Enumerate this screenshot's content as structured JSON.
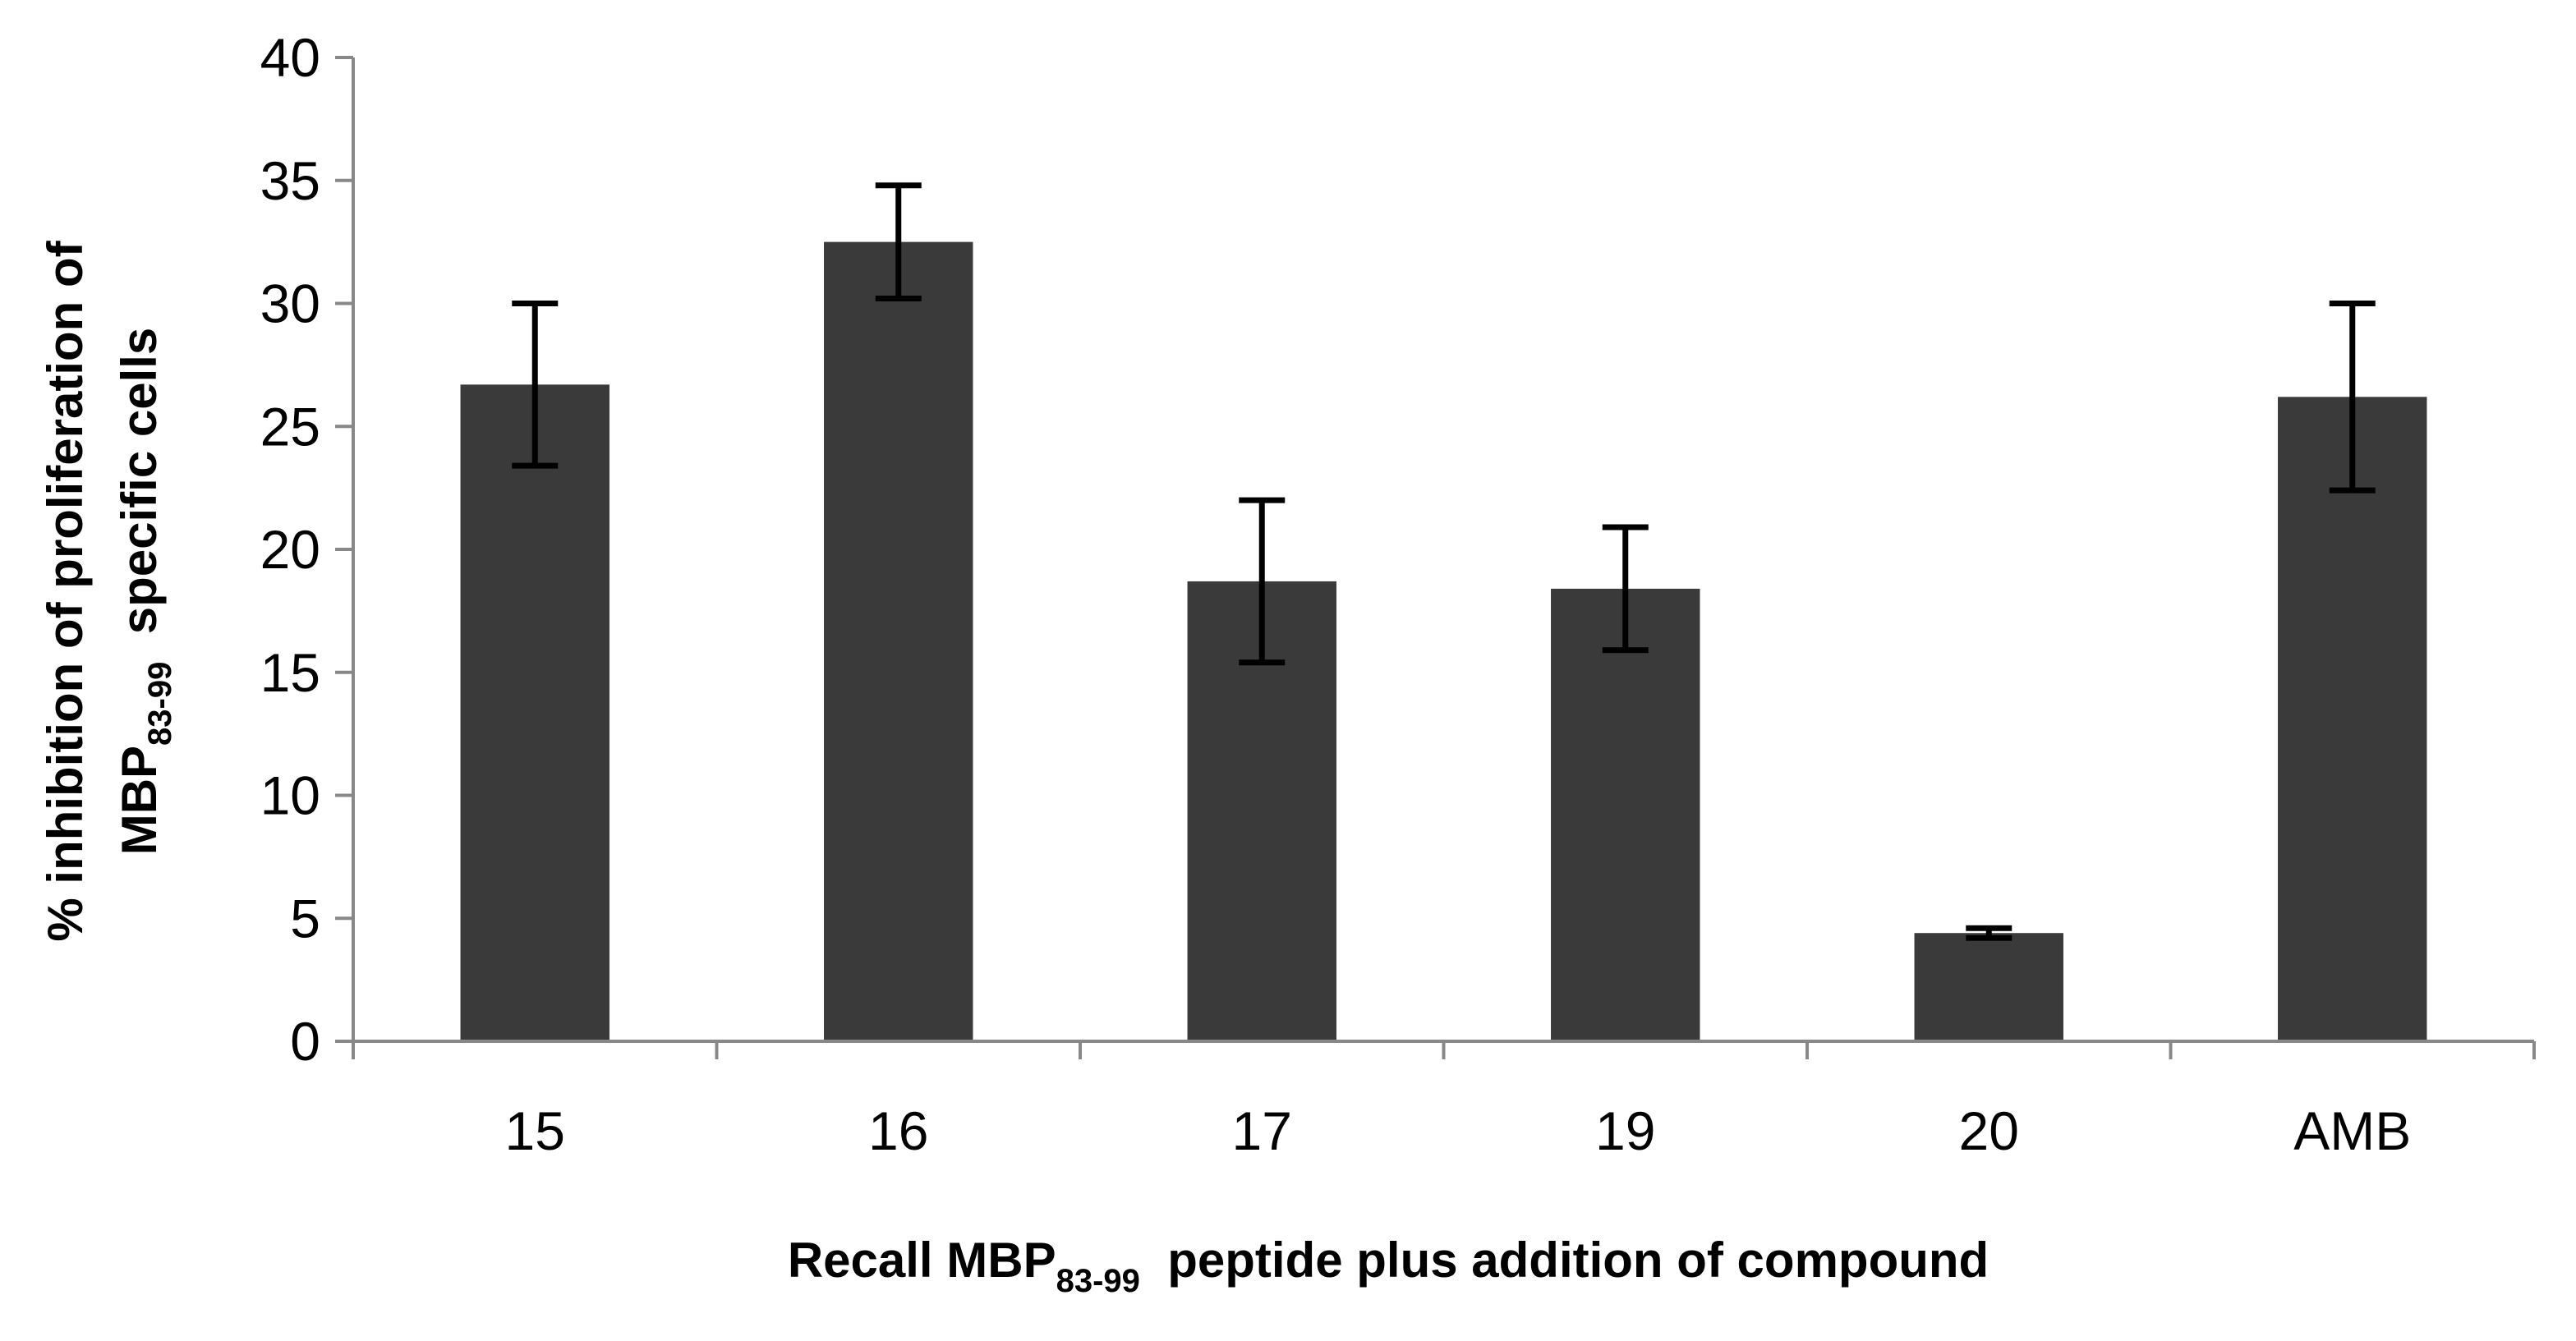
{
  "chart_data": {
    "type": "bar",
    "categories": [
      "15",
      "16",
      "17",
      "19",
      "20",
      "AMB"
    ],
    "values": [
      26.7,
      32.5,
      18.7,
      18.4,
      4.4,
      26.2
    ],
    "errors": [
      3.3,
      2.3,
      3.3,
      2.5,
      0.2,
      3.8
    ],
    "ylim": [
      0,
      40
    ],
    "yticks": [
      0,
      5,
      10,
      15,
      20,
      25,
      30,
      35,
      40
    ],
    "grid": false,
    "legend": "none",
    "bar_color": "#3a3a3a",
    "error_bar_color": "#000000",
    "xlabel": {
      "prefix": "Recall MBP",
      "subscript": "83-99",
      "suffix": "  peptide plus addition of compound"
    },
    "ylabel": {
      "line1": "% inhibition of proliferation of",
      "line2_prefix": "MBP",
      "line2_subscript": "83-99",
      "line2_suffix": "  specific cells"
    }
  }
}
